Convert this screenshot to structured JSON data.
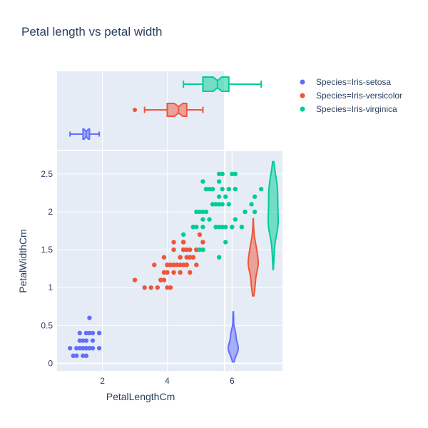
{
  "chart_data": {
    "type": "scatter",
    "title": "Petal length vs petal width",
    "xlabel": "PetalLengthCm",
    "ylabel": "PetalWidthCm",
    "xlim": [
      0.6,
      7.6
    ],
    "ylim": [
      -0.1,
      2.8
    ],
    "x_ticks": [
      2,
      4,
      6
    ],
    "y_ticks": [
      0,
      0.5,
      1,
      1.5,
      2,
      2.5
    ],
    "x_tick_labels": [
      "2",
      "4",
      "6"
    ],
    "y_tick_labels": [
      "0",
      "0.5",
      "1",
      "1.5",
      "2",
      "2.5"
    ],
    "grid": true,
    "legend_position": "top-right",
    "marginal_x": "box",
    "marginal_y": "violin",
    "series": [
      {
        "name": "Species=Iris-setosa",
        "color": "#636efa",
        "points": [
          [
            1.4,
            0.2
          ],
          [
            1.3,
            0.2
          ],
          [
            1.5,
            0.2
          ],
          [
            1.7,
            0.4
          ],
          [
            1.4,
            0.3
          ],
          [
            1.5,
            0.1
          ],
          [
            1.6,
            0.2
          ],
          [
            1.1,
            0.1
          ],
          [
            1.2,
            0.2
          ],
          [
            1.3,
            0.4
          ],
          [
            1.7,
            0.3
          ],
          [
            1.5,
            0.3
          ],
          [
            1.0,
            0.2
          ],
          [
            1.9,
            0.2
          ],
          [
            1.6,
            0.4
          ],
          [
            1.9,
            0.4
          ],
          [
            1.6,
            0.6
          ],
          [
            1.4,
            0.1
          ],
          [
            1.5,
            0.4
          ],
          [
            1.2,
            0.1
          ],
          [
            1.5,
            0.2
          ],
          [
            1.7,
            0.2
          ],
          [
            1.6,
            0.2
          ],
          [
            1.4,
            0.2
          ],
          [
            1.3,
            0.3
          ]
        ],
        "box_x": {
          "min": 1.0,
          "q1": 1.4,
          "median": 1.5,
          "q3": 1.6,
          "max": 1.9
        }
      },
      {
        "name": "Species=Iris-versicolor",
        "color": "#ef553b",
        "points": [
          [
            4.7,
            1.4
          ],
          [
            4.5,
            1.5
          ],
          [
            4.9,
            1.5
          ],
          [
            4.0,
            1.3
          ],
          [
            4.6,
            1.5
          ],
          [
            4.5,
            1.3
          ],
          [
            3.3,
            1.0
          ],
          [
            4.6,
            1.3
          ],
          [
            3.9,
            1.4
          ],
          [
            3.5,
            1.0
          ],
          [
            4.2,
            1.5
          ],
          [
            4.0,
            1.0
          ],
          [
            4.7,
            1.4
          ],
          [
            3.6,
            1.3
          ],
          [
            4.4,
            1.4
          ],
          [
            4.5,
            1.5
          ],
          [
            4.1,
            1.0
          ],
          [
            3.9,
            1.1
          ],
          [
            4.8,
            1.8
          ],
          [
            4.0,
            1.3
          ],
          [
            4.9,
            1.5
          ],
          [
            4.7,
            1.2
          ],
          [
            4.3,
            1.3
          ],
          [
            4.4,
            1.4
          ],
          [
            4.8,
            1.4
          ],
          [
            5.0,
            1.7
          ],
          [
            4.5,
            1.5
          ],
          [
            3.8,
            1.1
          ],
          [
            3.7,
            1.0
          ],
          [
            5.1,
            1.6
          ],
          [
            4.5,
            1.6
          ],
          [
            4.7,
            1.5
          ],
          [
            4.4,
            1.3
          ],
          [
            4.1,
            1.3
          ],
          [
            4.0,
            1.3
          ],
          [
            4.4,
            1.2
          ],
          [
            4.6,
            1.4
          ],
          [
            4.2,
            1.2
          ],
          [
            3.0,
            1.1
          ],
          [
            4.3,
            1.3
          ],
          [
            4.1,
            1.3
          ],
          [
            4.2,
            1.3
          ],
          [
            4.6,
            1.3
          ],
          [
            4.9,
            1.3
          ],
          [
            4.8,
            1.4
          ],
          [
            3.8,
            1.1
          ],
          [
            3.9,
            1.2
          ],
          [
            4.5,
            1.6
          ],
          [
            4.2,
            1.6
          ],
          [
            4.0,
            1.2
          ]
        ],
        "box_x": {
          "min": 3.3,
          "q1": 4.0,
          "median": 4.35,
          "q3": 4.6,
          "max": 5.1,
          "outliers": [
            3.0
          ]
        }
      },
      {
        "name": "Species=Iris-virginica",
        "color": "#00cc96",
        "points": [
          [
            6.0,
            2.5
          ],
          [
            5.1,
            1.9
          ],
          [
            5.9,
            2.1
          ],
          [
            5.6,
            1.8
          ],
          [
            5.8,
            2.2
          ],
          [
            6.6,
            2.1
          ],
          [
            4.5,
            1.7
          ],
          [
            6.3,
            1.8
          ],
          [
            5.8,
            1.8
          ],
          [
            6.1,
            2.5
          ],
          [
            5.1,
            2.0
          ],
          [
            5.3,
            1.9
          ],
          [
            5.5,
            2.1
          ],
          [
            5.0,
            2.0
          ],
          [
            5.1,
            2.4
          ],
          [
            5.3,
            2.3
          ],
          [
            5.5,
            1.8
          ],
          [
            6.7,
            2.2
          ],
          [
            6.9,
            2.3
          ],
          [
            5.0,
            1.5
          ],
          [
            5.7,
            2.3
          ],
          [
            4.9,
            2.0
          ],
          [
            6.7,
            2.0
          ],
          [
            4.9,
            1.8
          ],
          [
            5.7,
            2.1
          ],
          [
            6.0,
            1.8
          ],
          [
            4.8,
            1.8
          ],
          [
            5.6,
            2.1
          ],
          [
            5.8,
            1.6
          ],
          [
            6.4,
            2.0
          ],
          [
            5.6,
            2.2
          ],
          [
            5.1,
            1.5
          ],
          [
            5.6,
            1.4
          ],
          [
            6.1,
            2.3
          ],
          [
            5.6,
            2.4
          ],
          [
            5.5,
            1.8
          ],
          [
            5.4,
            2.1
          ],
          [
            5.2,
            2.3
          ],
          [
            5.2,
            2.0
          ],
          [
            5.4,
            2.3
          ],
          [
            5.6,
            2.5
          ],
          [
            5.9,
            2.3
          ],
          [
            5.7,
            2.5
          ],
          [
            6.1,
            1.9
          ],
          [
            5.2,
            2.3
          ],
          [
            6.0,
            1.8
          ],
          [
            5.7,
            1.8
          ],
          [
            6.3,
            1.8
          ],
          [
            5.1,
            1.8
          ],
          [
            5.4,
            2.3
          ]
        ],
        "box_x": {
          "min": 4.5,
          "q1": 5.1,
          "median": 5.55,
          "q3": 5.9,
          "max": 6.9
        }
      }
    ]
  }
}
